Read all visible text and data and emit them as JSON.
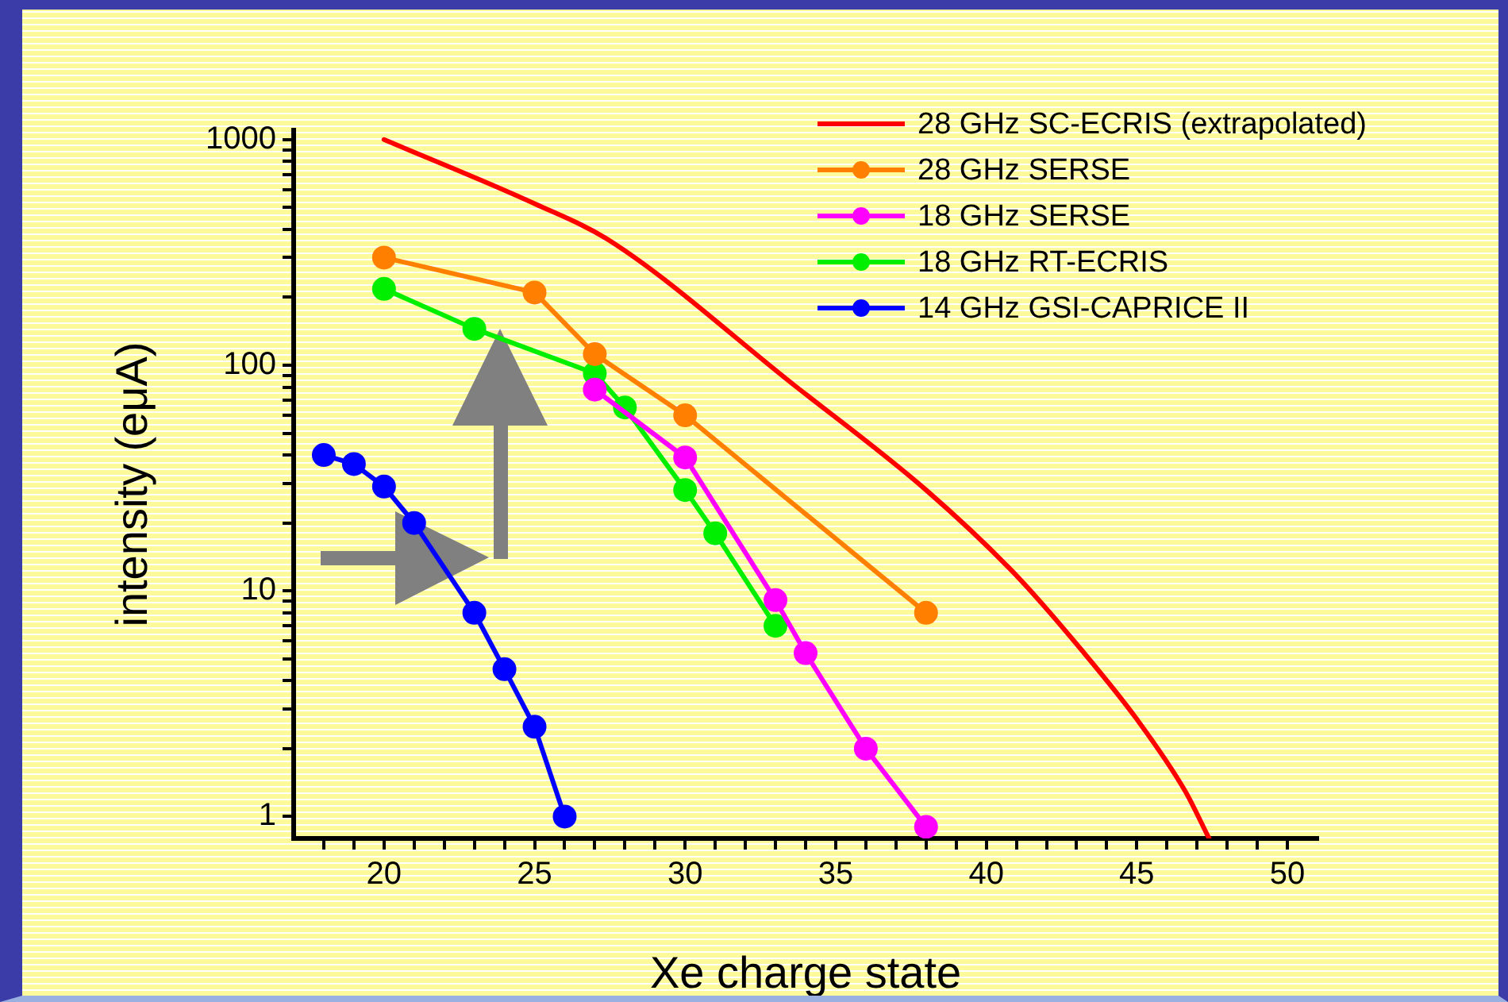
{
  "chart_data": {
    "type": "line",
    "xlabel": "Xe charge state",
    "ylabel": "intensity (eμA)",
    "log": "y",
    "grid": false,
    "legend": "top right",
    "marker": "circle",
    "line_style": "solid",
    "xlim": [
      17,
      51
    ],
    "ylim": [
      0.8,
      1100
    ],
    "xticks": [
      {
        "value": 18,
        "label": null
      },
      {
        "value": 19,
        "label": null
      },
      20,
      {
        "value": 21,
        "label": null
      },
      {
        "value": 22,
        "label": null
      },
      {
        "value": 23,
        "label": null
      },
      {
        "value": 24,
        "label": null
      },
      25,
      {
        "value": 26,
        "label": null
      },
      {
        "value": 27,
        "label": null
      },
      {
        "value": 28,
        "label": null
      },
      {
        "value": 29,
        "label": null
      },
      30,
      {
        "value": 31,
        "label": null
      },
      {
        "value": 32,
        "label": null
      },
      {
        "value": 33,
        "label": null
      },
      {
        "value": 34,
        "label": null
      },
      35,
      {
        "value": 36,
        "label": null
      },
      {
        "value": 37,
        "label": null
      },
      {
        "value": 38,
        "label": null
      },
      {
        "value": 39,
        "label": null
      },
      40,
      {
        "value": 41,
        "label": null
      },
      {
        "value": 42,
        "label": null
      },
      {
        "value": 43,
        "label": null
      },
      {
        "value": 44,
        "label": null
      },
      45,
      {
        "value": 46,
        "label": null
      },
      {
        "value": 47,
        "label": null
      },
      {
        "value": 48,
        "label": null
      },
      {
        "value": 49,
        "label": null
      },
      50
    ],
    "yticks": [
      1,
      {
        "value": 2,
        "label": null
      },
      {
        "value": 3,
        "label": null
      },
      {
        "value": 4,
        "label": null
      },
      {
        "value": 5,
        "label": null
      },
      {
        "value": 6,
        "label": null
      },
      {
        "value": 7,
        "label": null
      },
      {
        "value": 8,
        "label": null
      },
      {
        "value": 9,
        "label": null
      },
      10,
      {
        "value": 20,
        "label": null
      },
      {
        "value": 30,
        "label": null
      },
      {
        "value": 40,
        "label": null
      },
      {
        "value": 50,
        "label": null
      },
      {
        "value": 60,
        "label": null
      },
      {
        "value": 70,
        "label": null
      },
      {
        "value": 80,
        "label": null
      },
      {
        "value": 90,
        "label": null
      },
      100,
      {
        "value": 200,
        "label": null
      },
      {
        "value": 300,
        "label": null
      },
      {
        "value": 400,
        "label": null
      },
      {
        "value": 500,
        "label": null
      },
      {
        "value": 600,
        "label": null
      },
      {
        "value": 700,
        "label": null
      },
      {
        "value": 800,
        "label": null
      },
      {
        "value": 900,
        "label": null
      },
      1000
    ],
    "series": [
      {
        "name": "28 GHz SC-ECRIS (extrapolated)",
        "color": "#ff0000",
        "marker": "none",
        "x": [
          20,
          25,
          27.5,
          33.6,
          38,
          41,
          43.2,
          45,
          46.6,
          47.4
        ],
        "values": [
          1000,
          520,
          356,
          82,
          28,
          11.7,
          5.4,
          2.7,
          1.3,
          0.8
        ]
      },
      {
        "name": "28 GHz SERSE",
        "color": "#ff8000",
        "x": [
          20,
          25,
          27,
          30,
          38
        ],
        "values": [
          300,
          210,
          112,
          60,
          8
        ]
      },
      {
        "name": "18 GHz SERSE",
        "color": "#ff00ff",
        "x": [
          27,
          30,
          33,
          34,
          36,
          38
        ],
        "values": [
          78,
          39,
          9.1,
          5.3,
          2,
          0.9
        ]
      },
      {
        "name": "18 GHz RT-ECRIS",
        "color": "#00ee00",
        "x": [
          20,
          23,
          27,
          28,
          30,
          31,
          33
        ],
        "values": [
          218,
          145,
          92,
          65,
          28,
          18,
          7
        ]
      },
      {
        "name": "14 GHz GSI-CAPRICE II",
        "color": "#0000ff",
        "x": [
          18,
          19,
          20,
          21,
          23,
          24,
          25,
          26
        ],
        "values": [
          40,
          36.5,
          29,
          20,
          8,
          4.5,
          2.5,
          1
        ]
      }
    ]
  }
}
